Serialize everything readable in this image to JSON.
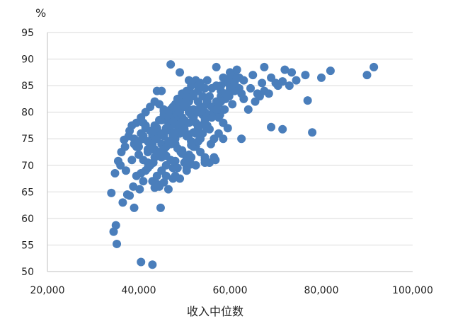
{
  "chart_data": {
    "type": "scatter",
    "title": "",
    "xlabel": "收入中位数",
    "ylabel": "%",
    "xlim": [
      20000,
      100000
    ],
    "ylim": [
      50,
      95
    ],
    "x_ticks": [
      20000,
      40000,
      60000,
      80000,
      100000
    ],
    "x_tick_labels": [
      "20,000",
      "40,000",
      "60,000",
      "80,000",
      "100,000"
    ],
    "y_ticks": [
      50,
      55,
      60,
      65,
      70,
      75,
      80,
      85,
      90,
      95
    ],
    "y_tick_labels": [
      "50",
      "55",
      "60",
      "65",
      "70",
      "75",
      "80",
      "85",
      "90",
      "95"
    ],
    "grid": "horizontal",
    "legend": "none",
    "point_color": "#4a7ebb",
    "x": [
      34000,
      34500,
      35000,
      34800,
      35200,
      36500,
      37500,
      38000,
      39000,
      40500,
      43000,
      44000,
      36000,
      37000,
      37800,
      38500,
      36800,
      37200,
      35500,
      36200,
      38800,
      39500,
      40200,
      41000,
      42000,
      43200,
      44800,
      46000,
      47500,
      48000,
      49200,
      50500,
      51500,
      52500,
      53500,
      54500,
      55800,
      56800,
      57800,
      58800,
      59800,
      61000,
      62000,
      63000,
      64000,
      65500,
      66500,
      67500,
      68500,
      70000,
      71500,
      73000,
      74500,
      76500,
      80000,
      82000,
      90000,
      91500,
      77000,
      78000,
      69000,
      71500,
      55000,
      58500,
      62500,
      38000,
      38500,
      39000,
      39500,
      40000,
      40500,
      41000,
      41500,
      42000,
      42500,
      43000,
      43500,
      44000,
      44500,
      45000,
      45500,
      46000,
      46500,
      47000,
      47500,
      48000,
      48500,
      49000,
      49500,
      50000,
      50500,
      51000,
      51500,
      52000,
      52500,
      53000,
      53500,
      54000,
      54500,
      55000,
      40000,
      41000,
      42000,
      43000,
      44000,
      45000,
      46000,
      47000,
      48000,
      49000,
      50000,
      51000,
      52000,
      53000,
      54000,
      55000,
      56000,
      57000,
      58000,
      59000,
      39000,
      40000,
      41000,
      42000,
      43000,
      44000,
      45000,
      46000,
      47000,
      48000,
      49000,
      50000,
      51000,
      52000,
      53000,
      54000,
      55000,
      56000,
      57000,
      58000,
      41500,
      42500,
      43500,
      44500,
      45500,
      46500,
      47500,
      48500,
      49500,
      50500,
      51500,
      52500,
      53500,
      54500,
      55500,
      56500,
      57500,
      58500,
      59500,
      60500,
      40500,
      41500,
      42500,
      43500,
      44500,
      45500,
      46500,
      47500,
      48500,
      49500,
      50500,
      51500,
      52500,
      53500,
      54500,
      55500,
      56500,
      57500,
      58500,
      59500,
      42000,
      43000,
      44000,
      45000,
      46000,
      47000,
      48000,
      49000,
      50000,
      51000,
      52000,
      53000,
      54000,
      55000,
      56000,
      57000,
      58000,
      59000,
      60000,
      61000,
      39500,
      40500,
      41500,
      42500,
      43500,
      44500,
      45500,
      46500,
      47500,
      48500,
      49500,
      50500,
      51500,
      52500,
      53500,
      54500,
      55500,
      56500,
      57500,
      58500,
      43000,
      44000,
      45000,
      46000,
      47000,
      48000,
      49000,
      50000,
      51000,
      52000,
      53000,
      54000,
      55000,
      56000,
      57000,
      58000,
      59000,
      60000,
      61000,
      62000,
      60000,
      61500,
      63000,
      64500,
      66000,
      67500,
      69000,
      70500,
      72000,
      73500,
      62500,
      65000,
      67000,
      45000,
      47000,
      49000,
      51000,
      53000,
      55000,
      57000,
      44500,
      46500,
      48500,
      50500,
      52500,
      54500,
      56500,
      58500,
      42500,
      43500,
      45500,
      47500,
      49500,
      51500,
      53500,
      55500,
      41000,
      43000,
      46000,
      48000,
      46000,
      47000,
      48000,
      49000,
      50000,
      51000,
      52000,
      53000,
      47500,
      48500,
      49500,
      50500,
      51500,
      45500,
      46500,
      47500,
      48500,
      49500,
      50500,
      44000
    ],
    "y": [
      64.8,
      57.5,
      58.7,
      68.5,
      55.2,
      63.0,
      64.5,
      64.3,
      62.0,
      51.8,
      51.3,
      66.5,
      70.0,
      73.5,
      75.5,
      71.0,
      74.8,
      69.0,
      70.8,
      72.5,
      66.0,
      68.0,
      65.5,
      67.0,
      69.5,
      70.5,
      62.0,
      68.0,
      69.5,
      74.0,
      72.5,
      69.5,
      71.5,
      73.5,
      75.0,
      70.5,
      74.0,
      71.0,
      79.5,
      80.5,
      83.0,
      84.0,
      84.5,
      82.5,
      80.5,
      82.0,
      83.0,
      84.0,
      83.5,
      85.5,
      85.8,
      85.0,
      86.0,
      87.0,
      86.5,
      87.8,
      87.0,
      88.5,
      82.2,
      76.2,
      77.2,
      76.8,
      77.0,
      78.0,
      75.0,
      76.5,
      77.5,
      75.0,
      73.5,
      74.5,
      76.0,
      78.0,
      77.5,
      72.5,
      74.0,
      75.5,
      73.0,
      76.0,
      72.5,
      74.0,
      75.5,
      78.5,
      77.0,
      76.5,
      79.5,
      78.0,
      80.0,
      77.0,
      79.0,
      78.5,
      81.0,
      80.0,
      79.5,
      80.5,
      78.0,
      82.0,
      81.0,
      79.5,
      80.0,
      81.5,
      72.0,
      71.0,
      70.5,
      73.0,
      72.0,
      71.5,
      73.5,
      74.0,
      75.0,
      76.0,
      77.5,
      78.0,
      79.0,
      80.0,
      80.5,
      79.5,
      81.0,
      82.0,
      83.0,
      82.5,
      74.0,
      73.5,
      75.0,
      74.5,
      76.0,
      77.0,
      78.5,
      79.0,
      80.5,
      81.5,
      82.0,
      83.0,
      84.0,
      83.5,
      82.0,
      81.0,
      82.5,
      84.5,
      85.0,
      84.0,
      77.0,
      76.5,
      77.5,
      78.5,
      79.5,
      80.0,
      81.0,
      82.5,
      83.5,
      84.0,
      85.0,
      86.0,
      85.5,
      84.5,
      83.0,
      80.0,
      79.0,
      78.0,
      77.0,
      81.5,
      68.5,
      69.0,
      70.0,
      71.5,
      72.0,
      73.0,
      74.5,
      75.5,
      76.5,
      77.0,
      75.5,
      74.5,
      76.0,
      77.5,
      78.5,
      79.5,
      80.5,
      81.5,
      83.5,
      85.5,
      73.0,
      74.0,
      75.0,
      76.0,
      77.0,
      78.0,
      79.0,
      80.0,
      81.0,
      82.0,
      83.0,
      84.0,
      83.0,
      82.0,
      81.0,
      80.5,
      85.0,
      86.0,
      86.5,
      87.0,
      78.0,
      79.0,
      80.0,
      81.0,
      82.0,
      81.5,
      80.5,
      79.5,
      78.5,
      77.5,
      76.5,
      75.5,
      74.5,
      73.5,
      72.5,
      71.5,
      70.5,
      75.0,
      76.0,
      86.5,
      67.0,
      68.0,
      69.0,
      70.0,
      71.0,
      68.0,
      67.5,
      70.5,
      72.0,
      73.5,
      74.5,
      76.0,
      77.5,
      79.0,
      80.5,
      82.0,
      83.5,
      84.5,
      85.5,
      86.5,
      87.5,
      88.0,
      86.0,
      84.5,
      83.5,
      88.5,
      86.5,
      85.0,
      88.0,
      87.5,
      83.5,
      87.0,
      85.5,
      84.0,
      89.0,
      87.5,
      86.0,
      85.0,
      86.0,
      88.5,
      66.0,
      65.5,
      69.5,
      69.0,
      70.0,
      71.0,
      71.5,
      75.0,
      70.0,
      65.8,
      66.8,
      67.5,
      72.8,
      73.8,
      75.8,
      76.8,
      75.5,
      73.5,
      71.8,
      70.8,
      76.5,
      77.5,
      78.5,
      77.8,
      76.8,
      75.8,
      76.2,
      77.2,
      74.5,
      73.2,
      72.2,
      71.2,
      70.2,
      80.2,
      79.2,
      78.2,
      80.8,
      81.8,
      82.8,
      84.0
    ]
  }
}
